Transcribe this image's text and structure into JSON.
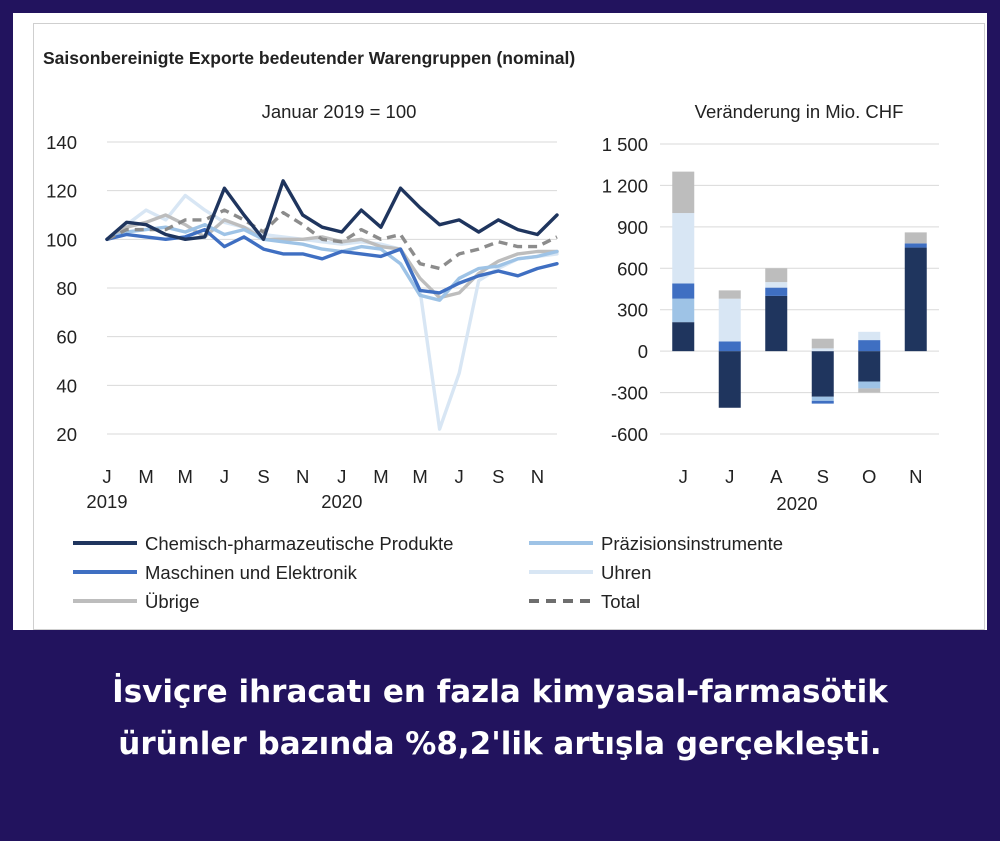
{
  "chart_data": [
    {
      "type": "line",
      "title": "Saisonbereinigte Exporte bedeutender Warengruppen (nominal)",
      "subtitle": "Januar 2019 = 100",
      "ylim": [
        20,
        140
      ],
      "yticks": [
        20,
        40,
        60,
        80,
        100,
        120,
        140
      ],
      "x_tick_labels": [
        "J",
        "M",
        "M",
        "J",
        "S",
        "N",
        "J",
        "M",
        "M",
        "J",
        "S",
        "N"
      ],
      "year_labels": [
        "2019",
        "2020"
      ],
      "series": [
        {
          "name": "Chemisch-pharmazeutische Produkte",
          "color": "#1f355e",
          "dash": "solid",
          "values": [
            100,
            107,
            106,
            102,
            100,
            101,
            121,
            110,
            100,
            124,
            110,
            105,
            103,
            112,
            105,
            121,
            113,
            106,
            108,
            103,
            108,
            104,
            102,
            110
          ]
        },
        {
          "name": "Präzisionsinstrumente",
          "color": "#9ec3e6",
          "dash": "solid",
          "values": [
            100,
            103,
            104,
            105,
            103,
            106,
            102,
            104,
            100,
            99,
            98,
            96,
            95,
            97,
            96,
            90,
            77,
            75,
            84,
            88,
            89,
            92,
            93,
            95
          ]
        },
        {
          "name": "Maschinen und Elektronik",
          "color": "#3f6fc2",
          "dash": "solid",
          "values": [
            100,
            102,
            101,
            100,
            101,
            104,
            97,
            101,
            96,
            94,
            94,
            92,
            95,
            94,
            93,
            96,
            79,
            78,
            82,
            85,
            87,
            85,
            88,
            90
          ]
        },
        {
          "name": "Uhren",
          "color": "#d8e6f4",
          "dash": "solid",
          "values": [
            100,
            106,
            112,
            108,
            118,
            112,
            107,
            105,
            102,
            101,
            100,
            99,
            98,
            99,
            98,
            96,
            79,
            22,
            45,
            83,
            88,
            92,
            93,
            94
          ]
        },
        {
          "name": "Übrige",
          "color": "#bdbdbd",
          "dash": "solid",
          "values": [
            100,
            105,
            107,
            110,
            106,
            101,
            108,
            105,
            100,
            100,
            100,
            101,
            99,
            100,
            97,
            96,
            84,
            76,
            78,
            86,
            91,
            94,
            95,
            95
          ]
        },
        {
          "name": "Total",
          "color": "#8c8c8c",
          "dash": "dashed",
          "values": [
            100,
            104,
            104,
            104,
            108,
            108,
            112,
            108,
            103,
            111,
            106,
            100,
            99,
            104,
            100,
            102,
            90,
            88,
            94,
            96,
            99,
            97,
            97,
            101
          ]
        }
      ],
      "legend": [
        {
          "label": "Chemisch-pharmazeutische Produkte",
          "color": "#1f355e",
          "dash": false
        },
        {
          "label": "Präzisionsinstrumente",
          "color": "#9ec3e6",
          "dash": false
        },
        {
          "label": "Maschinen und Elektronik",
          "color": "#3f6fc2",
          "dash": false
        },
        {
          "label": "Uhren",
          "color": "#d8e6f4",
          "dash": false
        },
        {
          "label": "Übrige",
          "color": "#bdbdbd",
          "dash": false
        },
        {
          "label": "Total",
          "color": "#6e6e6e",
          "dash": true
        }
      ]
    },
    {
      "type": "bar",
      "stacked": true,
      "title": "Veränderung in Mio. CHF",
      "ylim": [
        -600,
        1500
      ],
      "yticks": [
        -600,
        -300,
        0,
        300,
        600,
        900,
        1200,
        1500
      ],
      "ytick_labels": [
        "-600",
        "-300",
        "0",
        "300",
        "600",
        "900",
        "1 200",
        "1 500"
      ],
      "categories": [
        "J",
        "J",
        "A",
        "S",
        "O",
        "N"
      ],
      "xlabel": "2020",
      "series": [
        {
          "name": "Chemisch-pharmazeutische Produkte",
          "color": "#1f355e",
          "values": [
            210,
            -410,
            400,
            -330,
            -220,
            750
          ]
        },
        {
          "name": "Präzisionsinstrumente",
          "color": "#9ec3e6",
          "values": [
            170,
            0,
            0,
            -30,
            -50,
            0
          ]
        },
        {
          "name": "Maschinen und Elektronik",
          "color": "#3f6fc2",
          "values": [
            110,
            70,
            60,
            -20,
            80,
            30
          ]
        },
        {
          "name": "Uhren",
          "color": "#d8e6f4",
          "values": [
            510,
            310,
            40,
            20,
            60,
            0
          ]
        },
        {
          "name": "Übrige",
          "color": "#bdbdbd",
          "values": [
            300,
            60,
            100,
            70,
            -30,
            80
          ]
        }
      ]
    }
  ],
  "caption": {
    "line1": "İsviçre ihracatı en fazla kimyasal-farmasötik",
    "line2": "ürünler bazında %8,2'lik artışla gerçekleşti."
  }
}
